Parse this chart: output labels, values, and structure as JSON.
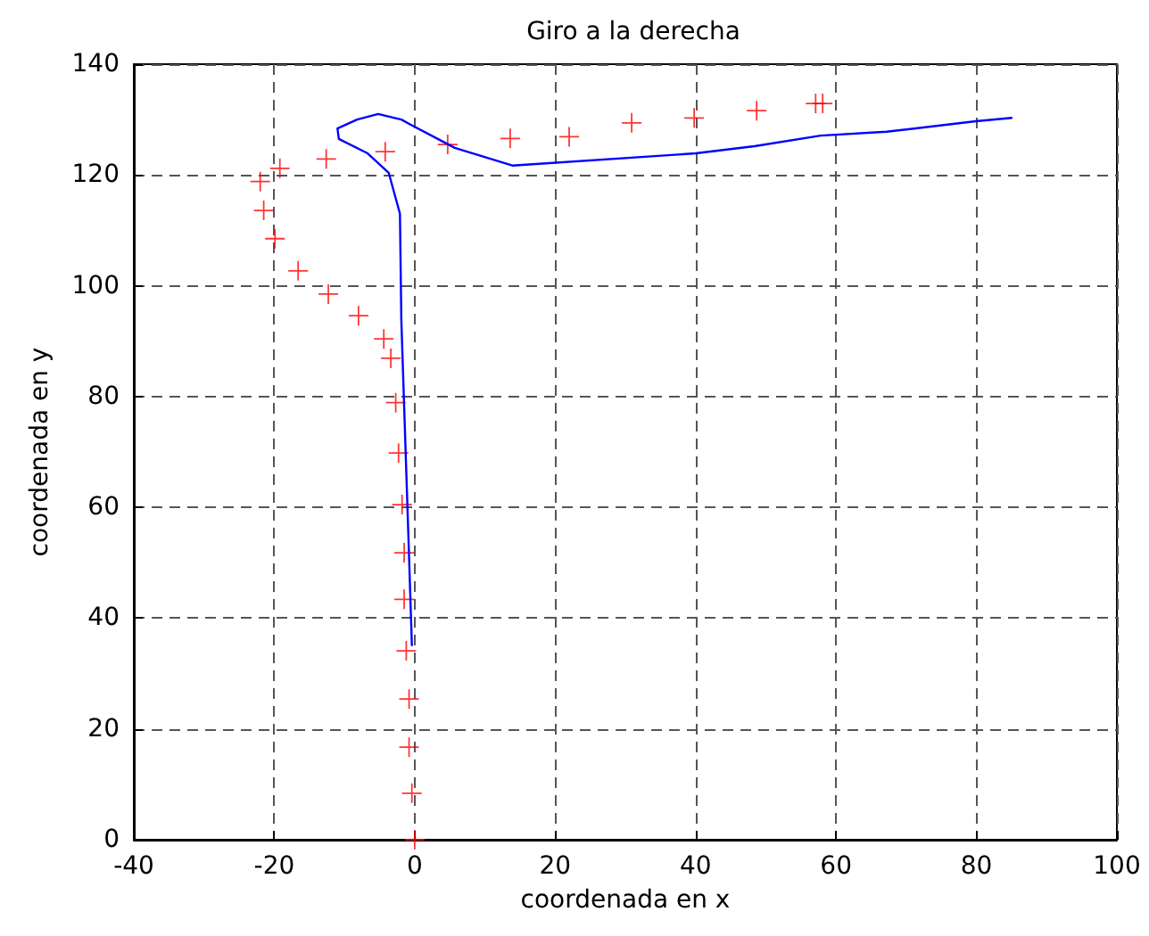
{
  "chart_data": {
    "type": "line",
    "title": "Giro a la derecha",
    "xlabel": "coordenada en x",
    "ylabel": "coordenada en y",
    "xlim": [
      -40,
      100
    ],
    "xticks": [
      -40,
      -20,
      0,
      20,
      40,
      60,
      80,
      100
    ],
    "ylim": [
      0,
      140
    ],
    "yticks": [
      0,
      20,
      40,
      60,
      80,
      100,
      120,
      140
    ],
    "grid": true,
    "series": [
      {
        "type": "scatter",
        "marker": "cross",
        "color": "#ff0000",
        "x": [
          0,
          -0.4,
          -0.8,
          -0.8,
          -1.2,
          -1.5,
          -1.5,
          -1.8,
          -2.3,
          -2.7,
          -3.4,
          -4.4,
          -8.0,
          -12.3,
          -16.6,
          -19.9,
          -21.5,
          -22.0,
          -19.2,
          -12.6,
          -4.2,
          4.7,
          13.6,
          22.0,
          30.9,
          39.8,
          48.7,
          57.1,
          58.1
        ],
        "values": [
          0,
          8.4,
          16.7,
          25.4,
          34.1,
          43.4,
          51.8,
          60.5,
          69.8,
          78.9,
          86.9,
          90.4,
          94.6,
          98.5,
          102.7,
          108.5,
          113.6,
          118.8,
          121.2,
          122.9,
          124.2,
          125.5,
          126.6,
          126.9,
          129.4,
          130.3,
          131.6,
          132.9,
          132.9
        ]
      },
      {
        "marker": "none",
        "line_style": "solid",
        "color": "#0000ff",
        "x": [
          -0.4,
          -0.9,
          -1.4,
          -1.9,
          -2.1,
          -3.7,
          -6.7,
          -10.8,
          -11.0,
          -8.2,
          -5.2,
          -1.9,
          -0.6,
          5.7,
          13.9,
          40,
          48.4,
          57.8,
          67.2,
          79.9,
          85
        ],
        "values": [
          35.1,
          55,
          74.3,
          93.7,
          113,
          120.4,
          123.9,
          126.5,
          128.4,
          130,
          131,
          130,
          129.1,
          124.9,
          121.7,
          123.9,
          125.2,
          127.1,
          127.8,
          129.7,
          130.3
        ]
      }
    ]
  }
}
